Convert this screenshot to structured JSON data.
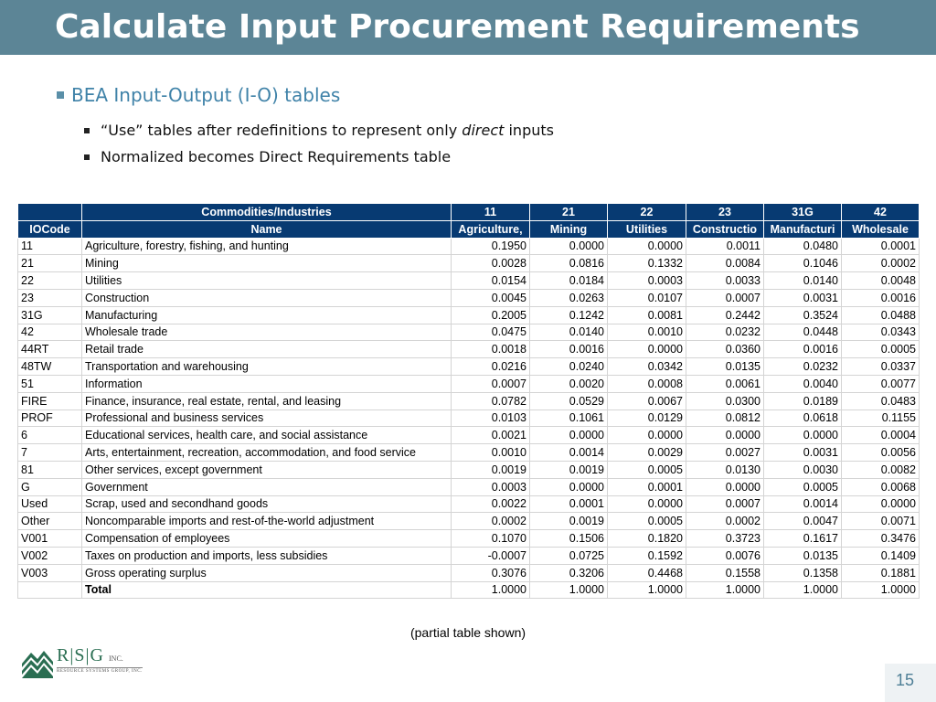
{
  "slide": {
    "title": "Calculate Input Procurement Requirements",
    "bullet_main": "BEA Input-Output (I-O) tables",
    "sub1_before": "“Use” tables after redefinitions to represent only ",
    "sub1_italic": "direct",
    "sub1_after": " inputs",
    "sub2": "Normalized becomes Direct Requirements table",
    "caption": "(partial table shown)",
    "page_number": "15"
  },
  "logo": {
    "letters": "R|S|G",
    "inc": "INC.",
    "subtitle": "RESOURCE SYSTEMS GROUP, INC."
  },
  "table": {
    "header1": [
      "",
      "Commodities/Industries",
      "11",
      "21",
      "22",
      "23",
      "31G",
      "42"
    ],
    "header2": [
      "IOCode",
      "Name",
      "Agriculture,",
      "Mining",
      "Utilities",
      "Constructio",
      "Manufacturi",
      "Wholesale"
    ],
    "rows": [
      [
        "11",
        "Agriculture, forestry, fishing, and hunting",
        "0.1950",
        "0.0000",
        "0.0000",
        "0.0011",
        "0.0480",
        "0.0001"
      ],
      [
        "21",
        "Mining",
        "0.0028",
        "0.0816",
        "0.1332",
        "0.0084",
        "0.1046",
        "0.0002"
      ],
      [
        "22",
        "Utilities",
        "0.0154",
        "0.0184",
        "0.0003",
        "0.0033",
        "0.0140",
        "0.0048"
      ],
      [
        "23",
        "Construction",
        "0.0045",
        "0.0263",
        "0.0107",
        "0.0007",
        "0.0031",
        "0.0016"
      ],
      [
        "31G",
        "Manufacturing",
        "0.2005",
        "0.1242",
        "0.0081",
        "0.2442",
        "0.3524",
        "0.0488"
      ],
      [
        "42",
        "Wholesale trade",
        "0.0475",
        "0.0140",
        "0.0010",
        "0.0232",
        "0.0448",
        "0.0343"
      ],
      [
        "44RT",
        "Retail trade",
        "0.0018",
        "0.0016",
        "0.0000",
        "0.0360",
        "0.0016",
        "0.0005"
      ],
      [
        "48TW",
        "Transportation and warehousing",
        "0.0216",
        "0.0240",
        "0.0342",
        "0.0135",
        "0.0232",
        "0.0337"
      ],
      [
        "51",
        "Information",
        "0.0007",
        "0.0020",
        "0.0008",
        "0.0061",
        "0.0040",
        "0.0077"
      ],
      [
        "FIRE",
        "Finance, insurance, real estate, rental, and leasing",
        "0.0782",
        "0.0529",
        "0.0067",
        "0.0300",
        "0.0189",
        "0.0483"
      ],
      [
        "PROF",
        "Professional and business services",
        "0.0103",
        "0.1061",
        "0.0129",
        "0.0812",
        "0.0618",
        "0.1155"
      ],
      [
        "6",
        "Educational services, health care, and social assistance",
        "0.0021",
        "0.0000",
        "0.0000",
        "0.0000",
        "0.0000",
        "0.0004"
      ],
      [
        "7",
        "Arts, entertainment, recreation, accommodation, and food service",
        "0.0010",
        "0.0014",
        "0.0029",
        "0.0027",
        "0.0031",
        "0.0056"
      ],
      [
        "81",
        "Other services, except government",
        "0.0019",
        "0.0019",
        "0.0005",
        "0.0130",
        "0.0030",
        "0.0082"
      ],
      [
        "G",
        "Government",
        "0.0003",
        "0.0000",
        "0.0001",
        "0.0000",
        "0.0005",
        "0.0068"
      ],
      [
        "Used",
        "Scrap, used and secondhand goods",
        "0.0022",
        "0.0001",
        "0.0000",
        "0.0007",
        "0.0014",
        "0.0000"
      ],
      [
        "Other",
        "Noncomparable imports and rest-of-the-world adjustment",
        "0.0002",
        "0.0019",
        "0.0005",
        "0.0002",
        "0.0047",
        "0.0071"
      ],
      [
        "V001",
        "Compensation of employees",
        "0.1070",
        "0.1506",
        "0.1820",
        "0.3723",
        "0.1617",
        "0.3476"
      ],
      [
        "V002",
        "Taxes on production and imports, less subsidies",
        "-0.0007",
        "0.0725",
        "0.1592",
        "0.0076",
        "0.0135",
        "0.1409"
      ],
      [
        "V003",
        "Gross operating surplus",
        "0.3076",
        "0.3206",
        "0.4468",
        "0.1558",
        "0.1358",
        "0.1881"
      ],
      [
        "",
        "Total",
        "1.0000",
        "1.0000",
        "1.0000",
        "1.0000",
        "1.0000",
        "1.0000"
      ]
    ]
  },
  "colors": {
    "title_bar": "#5c8596",
    "table_header": "#073a72",
    "bullet_text": "#3f82a8",
    "logo_green": "#2a6e52"
  }
}
